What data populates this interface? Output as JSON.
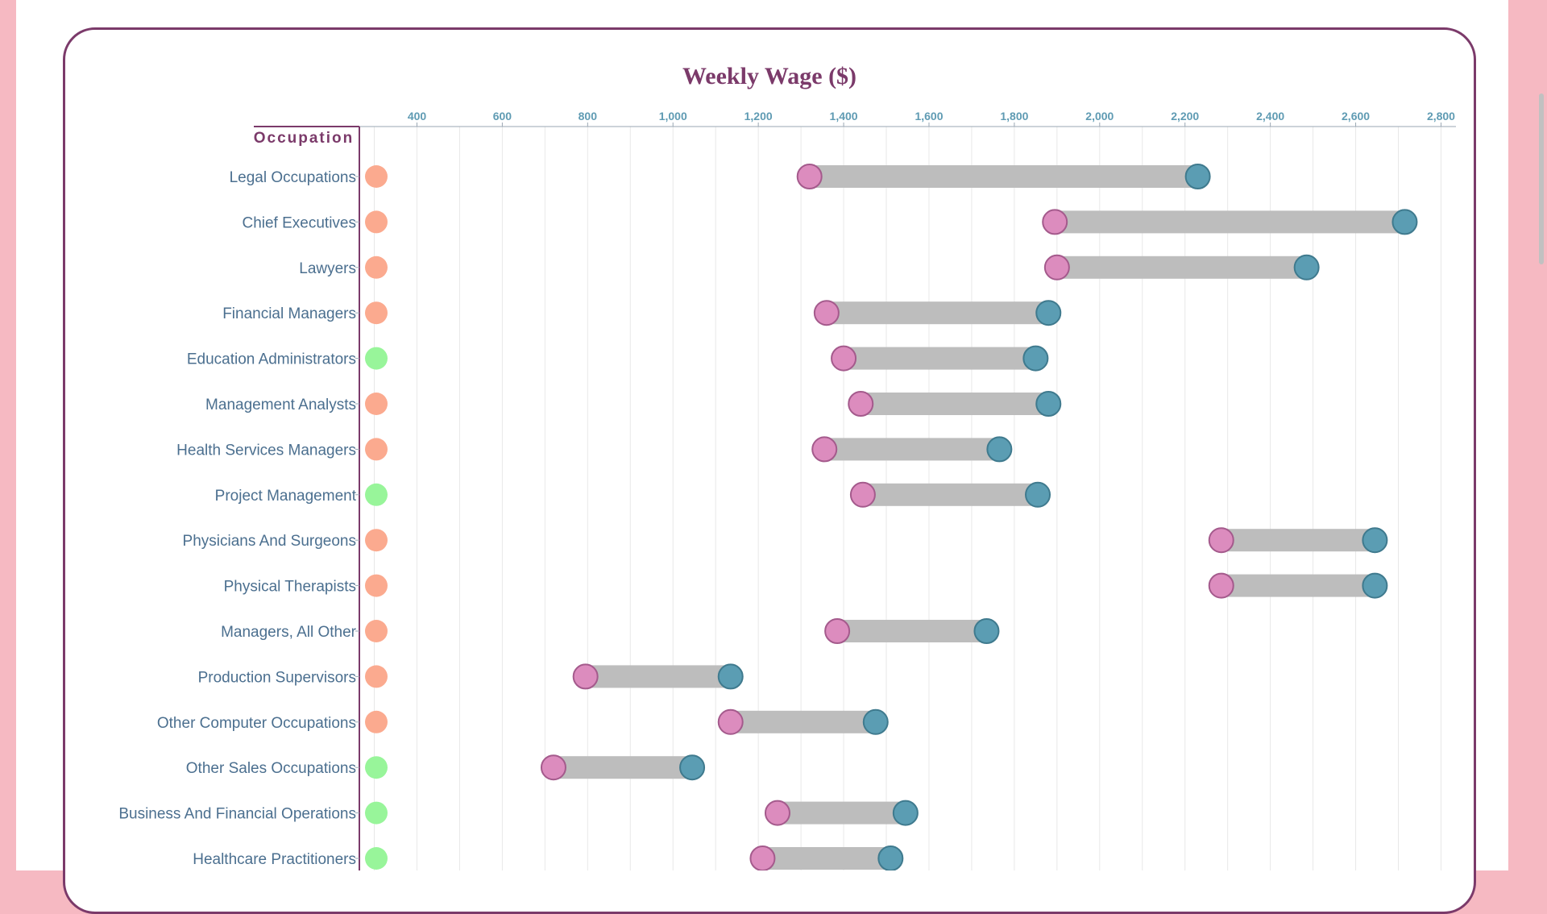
{
  "chart_data": {
    "type": "dumbbell",
    "title": "Weekly Wage ($)",
    "ylabel": "Occupation",
    "xlim": [
      265,
      2835
    ],
    "x_ticks": [
      "400",
      "600",
      "800",
      "1,000",
      "1,200",
      "1,400",
      "1,600",
      "1,800",
      "2,000",
      "2,200",
      "2,400",
      "2,600",
      "2,800"
    ],
    "x_tick_values": [
      400,
      600,
      800,
      1000,
      1200,
      1400,
      1600,
      1800,
      2000,
      2200,
      2400,
      2600,
      2800
    ],
    "grid": true,
    "colors": {
      "low_marker": "#dc8cbe",
      "high_marker": "#5b9db3",
      "bar": "#bdbdbd",
      "axis": "#7b3a6a",
      "grid": "#e8e8e8",
      "category_dot_orange": "#fbaa8f",
      "category_dot_green": "#98f59a"
    },
    "rows": [
      {
        "label": "Legal Occupations",
        "low": 1320,
        "high": 2230,
        "dot": "orange"
      },
      {
        "label": "Chief Executives",
        "low": 1895,
        "high": 2715,
        "dot": "orange"
      },
      {
        "label": "Lawyers",
        "low": 1900,
        "high": 2485,
        "dot": "orange"
      },
      {
        "label": "Financial Managers",
        "low": 1360,
        "high": 1880,
        "dot": "orange"
      },
      {
        "label": "Education Administrators",
        "low": 1400,
        "high": 1850,
        "dot": "green"
      },
      {
        "label": "Management Analysts",
        "low": 1440,
        "high": 1880,
        "dot": "orange"
      },
      {
        "label": "Health Services Managers",
        "low": 1355,
        "high": 1765,
        "dot": "orange"
      },
      {
        "label": "Project Management",
        "low": 1445,
        "high": 1855,
        "dot": "green"
      },
      {
        "label": "Physicians And Surgeons",
        "low": 2285,
        "high": 2645,
        "dot": "orange"
      },
      {
        "label": "Physical Therapists",
        "low": 2285,
        "high": 2645,
        "dot": "orange"
      },
      {
        "label": "Managers, All Other",
        "low": 1385,
        "high": 1735,
        "dot": "orange"
      },
      {
        "label": "Production Supervisors",
        "low": 795,
        "high": 1135,
        "dot": "orange"
      },
      {
        "label": "Other Computer Occupations",
        "low": 1135,
        "high": 1475,
        "dot": "orange"
      },
      {
        "label": "Other Sales Occupations",
        "low": 720,
        "high": 1045,
        "dot": "green"
      },
      {
        "label": "Business And Financial Operations",
        "low": 1245,
        "high": 1545,
        "dot": "green"
      },
      {
        "label": "Healthcare Practitioners",
        "low": 1210,
        "high": 1510,
        "dot": "green"
      }
    ]
  }
}
